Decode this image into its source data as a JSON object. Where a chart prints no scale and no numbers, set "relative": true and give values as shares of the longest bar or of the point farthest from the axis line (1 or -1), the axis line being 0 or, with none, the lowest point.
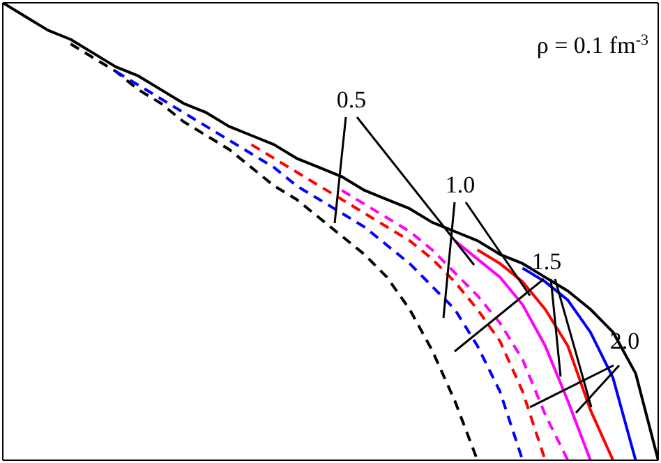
{
  "chart_data": {
    "type": "line",
    "relative": true,
    "tick_labels": false,
    "marker": "none",
    "categories": [
      null,
      null,
      null,
      null,
      null,
      null,
      null,
      null,
      null,
      null,
      null,
      null,
      null,
      null,
      null,
      null,
      null,
      null,
      null,
      null,
      null,
      null,
      null,
      null,
      null,
      null,
      null,
      null,
      null,
      null
    ],
    "series": [
      {
        "color": "#000000",
        "line_style": "solid",
        "values": [
          1.0,
          0.97,
          0.94,
          0.92,
          0.89,
          0.86,
          0.84,
          0.81,
          0.78,
          0.76,
          0.73,
          0.71,
          0.69,
          0.66,
          0.64,
          0.62,
          0.59,
          0.57,
          0.55,
          0.52,
          0.5,
          0.48,
          0.45,
          0.43,
          0.4,
          0.37,
          0.33,
          0.28,
          0.19,
          0
        ]
      },
      {
        "color": "#0000ff",
        "line_style": "solid",
        "values": [
          null,
          null,
          null,
          null,
          null,
          null,
          null,
          null,
          null,
          null,
          null,
          null,
          null,
          null,
          null,
          null,
          null,
          null,
          null,
          null,
          null,
          null,
          null,
          0.42,
          0.39,
          0.35,
          0.28,
          0.18,
          0,
          null
        ]
      },
      {
        "color": "#ff0000",
        "line_style": "solid",
        "values": [
          null,
          null,
          null,
          null,
          null,
          null,
          null,
          null,
          null,
          null,
          null,
          null,
          null,
          null,
          null,
          null,
          null,
          null,
          null,
          null,
          null,
          0.46,
          0.43,
          0.39,
          0.33,
          0.25,
          0.11,
          0,
          null,
          null
        ]
      },
      {
        "color": "#ff00ff",
        "line_style": "solid",
        "values": [
          null,
          null,
          null,
          null,
          null,
          null,
          null,
          null,
          null,
          null,
          null,
          null,
          null,
          null,
          null,
          null,
          null,
          null,
          null,
          null,
          0.48,
          0.44,
          0.4,
          0.34,
          0.25,
          0.13,
          0,
          null,
          null,
          null
        ]
      },
      {
        "color": "#000000",
        "line_style": "dashed",
        "values": [
          null,
          null,
          null,
          0.91,
          0.88,
          0.85,
          0.81,
          0.78,
          0.74,
          0.71,
          0.68,
          0.64,
          0.6,
          0.57,
          0.53,
          0.49,
          0.45,
          0.4,
          0.33,
          0.24,
          0.13,
          0,
          null,
          null,
          null,
          null,
          null,
          null,
          null,
          null
        ]
      },
      {
        "color": "#0000ff",
        "line_style": "dashed",
        "values": [
          null,
          null,
          null,
          null,
          null,
          0.85,
          0.82,
          0.79,
          0.76,
          0.73,
          0.7,
          0.67,
          0.64,
          0.6,
          0.57,
          0.54,
          0.51,
          0.47,
          0.43,
          0.38,
          0.33,
          0.25,
          0.15,
          0,
          null,
          null,
          null,
          null,
          null,
          null
        ]
      },
      {
        "color": "#ff0000",
        "line_style": "dashed",
        "values": [
          null,
          null,
          null,
          null,
          null,
          null,
          null,
          null,
          null,
          null,
          null,
          0.69,
          0.66,
          0.63,
          0.6,
          0.57,
          0.54,
          0.51,
          0.48,
          0.44,
          0.39,
          0.33,
          0.26,
          0.15,
          0,
          null,
          null,
          null,
          null,
          null
        ]
      },
      {
        "color": "#ff00ff",
        "line_style": "dashed",
        "values": [
          null,
          null,
          null,
          null,
          null,
          null,
          null,
          null,
          null,
          null,
          null,
          null,
          null,
          null,
          null,
          0.59,
          0.56,
          0.53,
          0.5,
          0.46,
          0.41,
          0.36,
          0.3,
          0.22,
          0.1,
          0,
          null,
          null,
          null,
          null
        ]
      }
    ],
    "annotations": [
      "ρ = 0.1 fm$^{-3}$",
      "0.5",
      "1.0",
      "1.5",
      "2.0"
    ]
  }
}
